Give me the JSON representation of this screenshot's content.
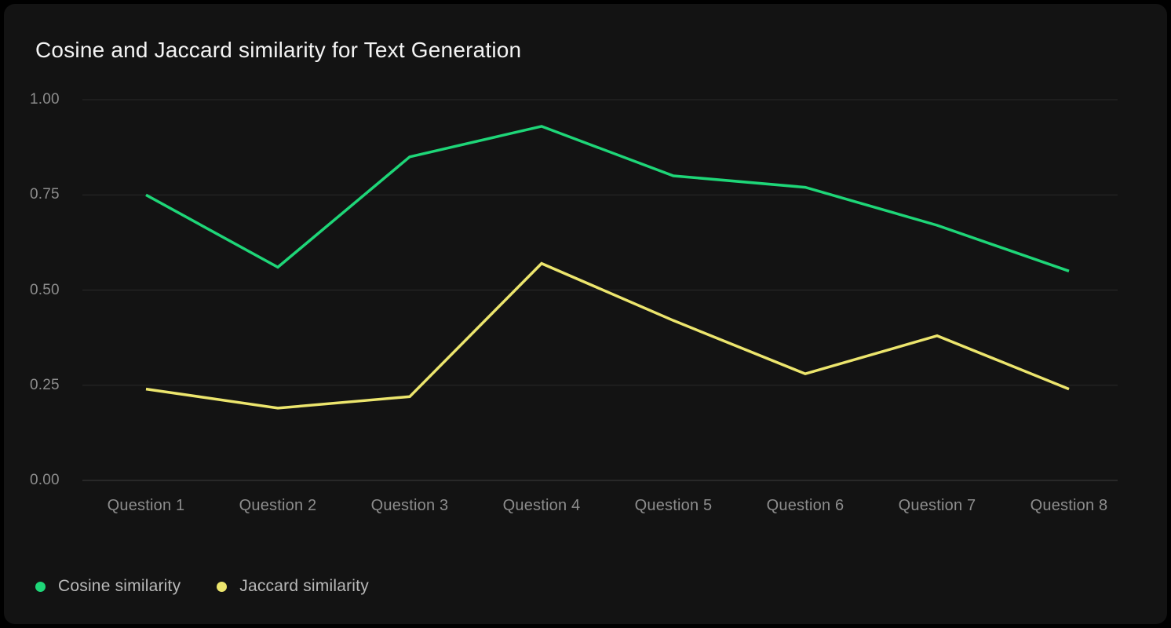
{
  "title": "Cosine and Jaccard similarity for Text Generation",
  "chart_data": {
    "type": "line",
    "categories": [
      "Question 1",
      "Question 2",
      "Question 3",
      "Question 4",
      "Question 5",
      "Question 6",
      "Question 7",
      "Question 8"
    ],
    "series": [
      {
        "name": "Cosine similarity",
        "color": "#1ed678",
        "values": [
          0.75,
          0.56,
          0.85,
          0.93,
          0.8,
          0.77,
          0.67,
          0.55
        ]
      },
      {
        "name": "Jaccard similarity",
        "color": "#ece56d",
        "values": [
          0.24,
          0.19,
          0.22,
          0.57,
          0.42,
          0.28,
          0.38,
          0.24
        ]
      }
    ],
    "y_ticks": [
      "1.00",
      "0.75",
      "0.50",
      "0.25",
      "0.00"
    ],
    "ylim": [
      0,
      1
    ],
    "grid": "horizontal",
    "legend_position": "bottom-left",
    "xlabel": "",
    "ylabel": ""
  },
  "colors": {
    "background": "#000000",
    "card": "#131313",
    "gridline": "#2a2a2a",
    "axis_line": "#3c3c3c",
    "title_text": "#f4f4f4",
    "tick_text": "#8d8d8d",
    "legend_text": "#b9b9b9"
  }
}
